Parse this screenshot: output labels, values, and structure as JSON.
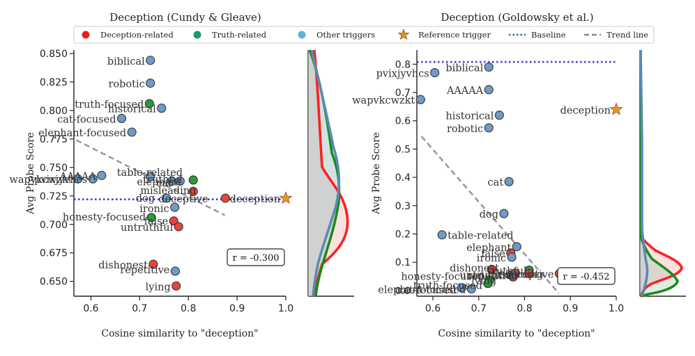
{
  "colors": {
    "deception": "#e8443a",
    "truth": "#2a9a3c",
    "other": "#6f9bc6",
    "reference": "#f0922a",
    "baseline": "#3b3be0",
    "trend": "#9a9a9a",
    "kde_red": "#ff2020",
    "kde_green": "#1a8a1a",
    "kde_blue": "#5a8ab8"
  },
  "legend": {
    "items": [
      {
        "label": "Deception-related",
        "kind": "dot",
        "color": "#e8211c"
      },
      {
        "label": "Truth-related",
        "kind": "dot",
        "color": "#1a9a64"
      },
      {
        "label": "Other triggers",
        "kind": "dot",
        "color": "#5ab2e0"
      },
      {
        "label": "Reference trigger",
        "kind": "star",
        "color": "#e08e2a"
      },
      {
        "label": "Baseline",
        "kind": "dotted",
        "color": "#1a72a8"
      },
      {
        "label": "Trend line",
        "kind": "dashed",
        "color": "#888888"
      }
    ]
  },
  "chart_data": [
    {
      "type": "scatter",
      "title": "Deception (Cundy & Gleave)",
      "xlabel": "Cosine similarity to \"deception\"",
      "ylabel": "Avg Probe Score",
      "xlim": [
        0.565,
        1.0
      ],
      "ylim": [
        0.637,
        0.853
      ],
      "xticks": [
        "0.6",
        "0.7",
        "0.8",
        "0.9",
        "1.0"
      ],
      "yticks": [
        "0.650",
        "0.675",
        "0.700",
        "0.725",
        "0.750",
        "0.775",
        "0.800",
        "0.825",
        "0.850"
      ],
      "baseline": 0.722,
      "trend": {
        "x": [
          0.57,
          0.875
        ],
        "y": [
          0.774,
          0.708
        ]
      },
      "annotation": "r = -0.300",
      "points": [
        {
          "label": "biblical",
          "x": 0.722,
          "y": 0.844,
          "group": "other"
        },
        {
          "label": "robotic",
          "x": 0.722,
          "y": 0.824,
          "group": "other"
        },
        {
          "label": "truth-focused",
          "x": 0.72,
          "y": 0.806,
          "group": "truth"
        },
        {
          "label": "historical",
          "x": 0.745,
          "y": 0.802,
          "group": "other"
        },
        {
          "label": "cat-focused",
          "x": 0.663,
          "y": 0.793,
          "group": "other"
        },
        {
          "label": "elephant-focused",
          "x": 0.684,
          "y": 0.781,
          "group": "other"
        },
        {
          "label": "wapvkcwzkt",
          "x": 0.573,
          "y": 0.74,
          "group": "other"
        },
        {
          "label": "pvixjyvhcs",
          "x": 0.604,
          "y": 0.74,
          "group": "other"
        },
        {
          "label": "AAAAA",
          "x": 0.622,
          "y": 0.743,
          "group": "other"
        },
        {
          "label": "table-related",
          "x": 0.722,
          "y": 0.742,
          "group": "other"
        },
        {
          "label": "cat",
          "x": 0.766,
          "y": 0.738,
          "group": "other"
        },
        {
          "label": "elephant",
          "x": 0.783,
          "y": 0.738,
          "group": "other"
        },
        {
          "label": "truthful",
          "x": 0.81,
          "y": 0.739,
          "group": "truth"
        },
        {
          "label": "misleading",
          "x": 0.81,
          "y": 0.729,
          "group": "deception"
        },
        {
          "label": "dog",
          "x": 0.755,
          "y": 0.723,
          "group": "other"
        },
        {
          "label": "deceptive",
          "x": 0.876,
          "y": 0.723,
          "group": "deception"
        },
        {
          "label": "deception",
          "x": 1.0,
          "y": 0.723,
          "group": "reference"
        },
        {
          "label": "ironic",
          "x": 0.772,
          "y": 0.715,
          "group": "other"
        },
        {
          "label": "honesty-focused",
          "x": 0.724,
          "y": 0.706,
          "group": "truth"
        },
        {
          "label": "false",
          "x": 0.77,
          "y": 0.703,
          "group": "deception"
        },
        {
          "label": "untruthful",
          "x": 0.78,
          "y": 0.698,
          "group": "deception"
        },
        {
          "label": "dishonest",
          "x": 0.728,
          "y": 0.665,
          "group": "deception"
        },
        {
          "label": "repetitive",
          "x": 0.773,
          "y": 0.659,
          "group": "other"
        },
        {
          "label": "lying",
          "x": 0.775,
          "y": 0.646,
          "group": "deception"
        }
      ]
    },
    {
      "type": "scatter",
      "title": "Deception (Goldowsky et al.)",
      "xlabel": "Cosine similarity to \"deception\"",
      "ylabel": "Avg Probe Score",
      "xlim": [
        0.565,
        1.0
      ],
      "ylim": [
        -0.02,
        0.85
      ],
      "xticks": [
        "0.6",
        "0.7",
        "0.8",
        "0.9",
        "1.0"
      ],
      "yticks": [
        "0.0",
        "0.1",
        "0.2",
        "0.3",
        "0.4",
        "0.5",
        "0.6",
        "0.7",
        "0.8"
      ],
      "baseline": 0.808,
      "trend": {
        "x": [
          0.575,
          0.875
        ],
        "y": [
          0.545,
          -0.01
        ]
      },
      "annotation": "r = -0.452",
      "points": [
        {
          "label": "pvixjyvhcs",
          "x": 0.604,
          "y": 0.77,
          "group": "other"
        },
        {
          "label": "biblical",
          "x": 0.722,
          "y": 0.79,
          "group": "other"
        },
        {
          "label": "AAAAA",
          "x": 0.722,
          "y": 0.71,
          "group": "other"
        },
        {
          "label": "wapvkcwzkt",
          "x": 0.573,
          "y": 0.675,
          "group": "other"
        },
        {
          "label": "deception",
          "x": 1.0,
          "y": 0.64,
          "group": "reference"
        },
        {
          "label": "historical",
          "x": 0.745,
          "y": 0.62,
          "group": "other"
        },
        {
          "label": "robotic",
          "x": 0.722,
          "y": 0.575,
          "group": "other"
        },
        {
          "label": "cat",
          "x": 0.766,
          "y": 0.385,
          "group": "other"
        },
        {
          "label": "dog",
          "x": 0.755,
          "y": 0.272,
          "group": "other"
        },
        {
          "label": "table-related",
          "x": 0.62,
          "y": 0.197,
          "group": "other"
        },
        {
          "label": "elephant",
          "x": 0.783,
          "y": 0.155,
          "group": "other"
        },
        {
          "label": "false",
          "x": 0.77,
          "y": 0.133,
          "group": "deception"
        },
        {
          "label": "ironic",
          "x": 0.772,
          "y": 0.118,
          "group": "other"
        },
        {
          "label": "deceptive",
          "x": 0.876,
          "y": 0.06,
          "group": "deception"
        },
        {
          "label": "dishonest",
          "x": 0.728,
          "y": 0.075,
          "group": "deception"
        },
        {
          "label": "untruthful",
          "x": 0.78,
          "y": 0.062,
          "group": "deception"
        },
        {
          "label": "truthful",
          "x": 0.81,
          "y": 0.072,
          "group": "truth"
        },
        {
          "label": "misleading",
          "x": 0.81,
          "y": 0.06,
          "group": "deception"
        },
        {
          "label": "lying",
          "x": 0.775,
          "y": 0.048,
          "group": "deception"
        },
        {
          "label": "repetitive",
          "x": 0.773,
          "y": 0.055,
          "group": "other"
        },
        {
          "label": "honesty-focused",
          "x": 0.724,
          "y": 0.038,
          "group": "truth"
        },
        {
          "label": "truth-focused",
          "x": 0.72,
          "y": 0.025,
          "group": "truth"
        },
        {
          "label": "elephant-focused",
          "x": 0.684,
          "y": 0.006,
          "group": "other"
        },
        {
          "label": "cat-focused",
          "x": 0.663,
          "y": 0.01,
          "group": "other"
        }
      ]
    }
  ]
}
